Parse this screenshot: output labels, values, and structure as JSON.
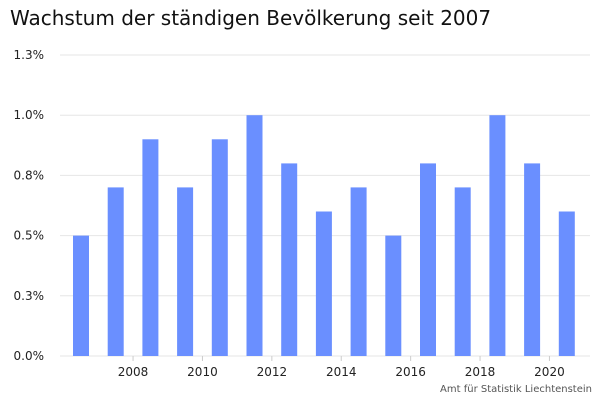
{
  "chart_data": {
    "type": "bar",
    "title": "Wachstum der ständigen Bevölkerung seit 2007",
    "xlabel": "",
    "ylabel": "",
    "categories": [
      "2007",
      "2008",
      "2009",
      "2010",
      "2011",
      "2012",
      "2013",
      "2014",
      "2015",
      "2016",
      "2017",
      "2018",
      "2019",
      "2020",
      "2021"
    ],
    "values": [
      0.5,
      0.7,
      0.9,
      0.7,
      0.9,
      1.0,
      0.8,
      0.6,
      0.7,
      0.5,
      0.8,
      0.7,
      1.0,
      0.8,
      0.6
    ],
    "ylim": [
      0,
      1.25
    ],
    "y_ticks": [
      {
        "value": 0,
        "label": "0.0%"
      },
      {
        "value": 0.25,
        "label": "0.3%"
      },
      {
        "value": 0.5,
        "label": "0.5%"
      },
      {
        "value": 0.75,
        "label": "0.8%"
      },
      {
        "value": 1.0,
        "label": "1.0%"
      },
      {
        "value": 1.25,
        "label": "1.3%"
      }
    ],
    "x_tick_labels": [
      "2008",
      "2010",
      "2012",
      "2014",
      "2016",
      "2018",
      "2020"
    ],
    "grid": true,
    "bar_color": "#6a8fff",
    "grid_color": "#e6e6e6",
    "source": "Amt für Statistik Liechtenstein"
  }
}
